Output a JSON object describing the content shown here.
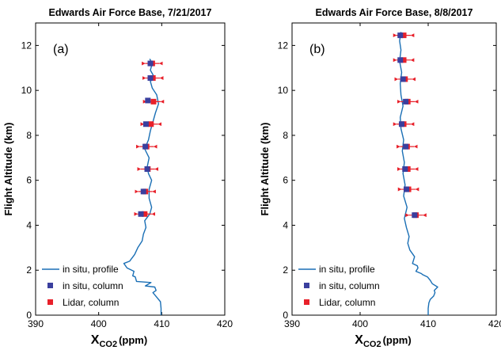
{
  "chart_data": [
    {
      "type": "line",
      "panel_label": "(a)",
      "title": "Edwards Air Force Base, 7/21/2017",
      "xlabel_main": "X",
      "xlabel_sub": "CO2",
      "xlabel_unit": "(ppm)",
      "ylabel": "Flight Altitude (km)",
      "xlim": [
        390,
        420
      ],
      "ylim": [
        0,
        13
      ],
      "xticks": [
        "390",
        "400",
        "410",
        "420"
      ],
      "yticks": [
        "0",
        "2",
        "4",
        "6",
        "8",
        "10",
        "12"
      ],
      "legend": {
        "position": "bottom-left",
        "entries": [
          "in situ, profile",
          "in situ, column",
          "Lidar, column"
        ]
      },
      "colors": {
        "profile": "#1a6fb5",
        "insitu_column": "#3a3f9e",
        "lidar_column": "#e8202a"
      },
      "series": [
        {
          "name": "in situ, profile",
          "points": [
            [
              409.9,
              0
            ],
            [
              409.9,
              0.3
            ],
            [
              409.8,
              0.6
            ],
            [
              409.2,
              0.8
            ],
            [
              408.6,
              1.0
            ],
            [
              409.1,
              1.1
            ],
            [
              408.9,
              1.25
            ],
            [
              407.4,
              1.3
            ],
            [
              408.3,
              1.45
            ],
            [
              406.0,
              1.5
            ],
            [
              405.8,
              1.7
            ],
            [
              405.4,
              1.75
            ],
            [
              405.6,
              1.95
            ],
            [
              404.5,
              2.1
            ],
            [
              404.0,
              2.3
            ],
            [
              404.9,
              2.4
            ],
            [
              405.7,
              2.7
            ],
            [
              406.2,
              3.0
            ],
            [
              406.9,
              3.3
            ],
            [
              407.1,
              3.6
            ],
            [
              407.5,
              3.9
            ],
            [
              407.3,
              4.2
            ],
            [
              408.1,
              4.5
            ],
            [
              408.4,
              4.8
            ],
            [
              408.0,
              5.2
            ],
            [
              408.0,
              5.6
            ],
            [
              408.4,
              6.0
            ],
            [
              407.9,
              6.3
            ],
            [
              407.7,
              6.6
            ],
            [
              408.0,
              7.0
            ],
            [
              407.3,
              7.4
            ],
            [
              407.9,
              7.8
            ],
            [
              408.2,
              8.2
            ],
            [
              408.6,
              8.6
            ],
            [
              409.0,
              9.0
            ],
            [
              409.5,
              9.4
            ],
            [
              409.2,
              9.8
            ],
            [
              408.5,
              10.1
            ],
            [
              408.2,
              10.4
            ],
            [
              408.8,
              10.6
            ],
            [
              408.2,
              10.9
            ],
            [
              408.5,
              11.2
            ],
            [
              408.1,
              11.4
            ]
          ]
        },
        {
          "name": "in situ, column",
          "points": [
            [
              408.2,
              11.2
            ],
            [
              408.2,
              10.55
            ],
            [
              407.8,
              9.55
            ],
            [
              407.5,
              8.5
            ],
            [
              407.4,
              7.5
            ],
            [
              407.7,
              6.5
            ],
            [
              407.1,
              5.5
            ],
            [
              406.7,
              4.5
            ]
          ]
        },
        {
          "name": "Lidar, column",
          "points": [
            [
              408.5,
              11.2
            ],
            [
              408.6,
              10.55
            ],
            [
              408.7,
              9.5
            ],
            [
              408.3,
              8.5
            ],
            [
              407.6,
              7.5
            ],
            [
              407.8,
              6.5
            ],
            [
              407.4,
              5.5
            ],
            [
              407.3,
              4.5
            ]
          ]
        }
      ]
    },
    {
      "type": "line",
      "panel_label": "(b)",
      "title": "Edwards Air Force Base, 8/8/2017",
      "xlabel_main": "X",
      "xlabel_sub": "CO2",
      "xlabel_unit": "(ppm)",
      "ylabel": "Flight Altitude (km)",
      "xlim": [
        390,
        420
      ],
      "ylim": [
        0,
        13
      ],
      "xticks": [
        "390",
        "400",
        "410",
        "420"
      ],
      "yticks": [
        "0",
        "2",
        "4",
        "6",
        "8",
        "10",
        "12"
      ],
      "legend": {
        "position": "bottom-left",
        "entries": [
          "in situ, profile",
          "in situ, column",
          "Lidar, column"
        ]
      },
      "colors": {
        "profile": "#1a6fb5",
        "insitu_column": "#3a3f9e",
        "lidar_column": "#e8202a"
      },
      "series": [
        {
          "name": "in situ, profile",
          "points": [
            [
              410.0,
              0
            ],
            [
              410.0,
              0.3
            ],
            [
              410.1,
              0.55
            ],
            [
              410.3,
              0.7
            ],
            [
              410.8,
              0.85
            ],
            [
              411.0,
              1.0
            ],
            [
              410.9,
              1.1
            ],
            [
              411.4,
              1.25
            ],
            [
              410.6,
              1.4
            ],
            [
              410.3,
              1.55
            ],
            [
              409.9,
              1.7
            ],
            [
              409.2,
              1.8
            ],
            [
              409.0,
              1.85
            ],
            [
              408.2,
              1.95
            ],
            [
              408.5,
              2.1
            ],
            [
              408.4,
              2.2
            ],
            [
              407.7,
              2.3
            ],
            [
              408.0,
              2.6
            ],
            [
              407.3,
              2.9
            ],
            [
              407.0,
              3.2
            ],
            [
              407.2,
              3.5
            ],
            [
              406.8,
              3.9
            ],
            [
              406.5,
              4.3
            ],
            [
              406.9,
              4.8
            ],
            [
              406.4,
              5.3
            ],
            [
              406.6,
              5.8
            ],
            [
              406.3,
              6.3
            ],
            [
              406.5,
              6.8
            ],
            [
              406.2,
              7.3
            ],
            [
              406.4,
              7.8
            ],
            [
              406.0,
              8.3
            ],
            [
              405.9,
              8.8
            ],
            [
              406.3,
              9.3
            ],
            [
              406.0,
              9.8
            ],
            [
              405.9,
              10.3
            ],
            [
              406.1,
              10.8
            ],
            [
              405.8,
              11.3
            ],
            [
              406.0,
              11.8
            ],
            [
              405.8,
              12.2
            ],
            [
              406.0,
              12.6
            ]
          ]
        },
        {
          "name": "in situ, column",
          "points": [
            [
              405.9,
              12.45
            ],
            [
              405.9,
              11.35
            ],
            [
              406.3,
              10.5
            ],
            [
              406.7,
              9.5
            ],
            [
              406.1,
              8.5
            ],
            [
              406.7,
              7.5
            ],
            [
              406.6,
              6.5
            ],
            [
              406.8,
              5.6
            ],
            [
              408.0,
              4.45
            ]
          ]
        },
        {
          "name": "Lidar, column",
          "points": [
            [
              406.4,
              12.45
            ],
            [
              406.4,
              11.35
            ],
            [
              406.6,
              10.5
            ],
            [
              407.0,
              9.5
            ],
            [
              406.4,
              8.5
            ],
            [
              406.9,
              7.5
            ],
            [
              407.0,
              6.5
            ],
            [
              407.1,
              5.6
            ],
            [
              408.2,
              4.45
            ]
          ]
        }
      ]
    }
  ]
}
